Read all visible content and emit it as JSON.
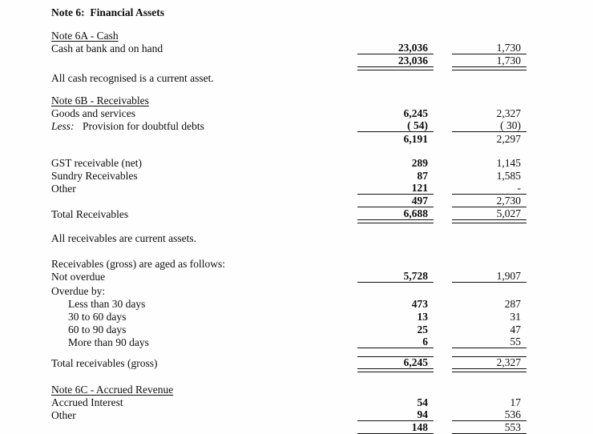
{
  "document": {
    "title": "Note 6:  Financial Assets",
    "rows": [
      {
        "kind": "spacer",
        "h": 12
      },
      {
        "kind": "header",
        "label": "Note 6A - Cash"
      },
      {
        "kind": "data",
        "label": "Cash at bank and on hand",
        "v1": "23,036",
        "v2": "1,730",
        "rule": "u"
      },
      {
        "kind": "data",
        "label": "",
        "v1": "23,036",
        "v2": "1,730",
        "rule": "uu"
      },
      {
        "kind": "spacer",
        "h": 5
      },
      {
        "kind": "text",
        "label": "All cash recognised is a current asset."
      },
      {
        "kind": "spacer",
        "h": 12
      },
      {
        "kind": "header",
        "label": "Note 6B - Receivables"
      },
      {
        "kind": "data",
        "label": "Goods and services",
        "v1": "6,245",
        "v2": "2,327"
      },
      {
        "kind": "data",
        "prefix": "Less:",
        "label": "Provision for doubtful debts",
        "v1": "( 54)",
        "v2": "( 30)",
        "rule": "u"
      },
      {
        "kind": "data",
        "label": "",
        "v1": "6,191",
        "v2": "2,297"
      },
      {
        "kind": "spacer",
        "h": 14
      },
      {
        "kind": "data",
        "label": "GST receivable (net)",
        "v1": "289",
        "v2": "1,145"
      },
      {
        "kind": "data",
        "label": "Sundry Receivables",
        "v1": "87",
        "v2": "1,585"
      },
      {
        "kind": "data",
        "label": "Other",
        "v1": "121",
        "v2": "-",
        "rule": "u"
      },
      {
        "kind": "data",
        "label": "",
        "v1": "497",
        "v2": "2,730",
        "rule": "u"
      },
      {
        "kind": "data",
        "label": "Total Receivables",
        "v1": "6,688",
        "v2": "5,027",
        "rule": "uu"
      },
      {
        "kind": "spacer",
        "h": 14
      },
      {
        "kind": "text",
        "label": "All receivables are current assets."
      },
      {
        "kind": "spacer",
        "h": 16
      },
      {
        "kind": "text",
        "label": "Receivables (gross) are aged as follows:"
      },
      {
        "kind": "data",
        "label": "Not overdue",
        "v1": "5,728",
        "v2": "1,907",
        "rule": "u"
      },
      {
        "kind": "spacer",
        "h": 2
      },
      {
        "kind": "text",
        "label": "Overdue by:"
      },
      {
        "kind": "data",
        "label": "Less than 30 days",
        "indent": 1,
        "v1": "473",
        "v2": "287"
      },
      {
        "kind": "data",
        "label": "30 to 60 days",
        "indent": 1,
        "v1": "13",
        "v2": "31"
      },
      {
        "kind": "data",
        "label": "60 to 90 days",
        "indent": 1,
        "v1": "25",
        "v2": "47"
      },
      {
        "kind": "data",
        "label": "More than 90 days",
        "indent": 1,
        "v1": "6",
        "v2": "55",
        "rule": "u"
      },
      {
        "kind": "spacer",
        "h": 10
      },
      {
        "kind": "data",
        "label": "Total receivables (gross)",
        "v1": "6,245",
        "v2": "2,327",
        "rule": "t-uu"
      },
      {
        "kind": "spacer",
        "h": 17
      },
      {
        "kind": "header",
        "label": "Note 6C - Accrued Revenue"
      },
      {
        "kind": "data",
        "label": "Accrued Interest",
        "v1": "54",
        "v2": "17"
      },
      {
        "kind": "data",
        "label": "Other",
        "v1": "94",
        "v2": "536",
        "rule": "u"
      },
      {
        "kind": "data",
        "label": "",
        "v1": "148",
        "v2": "553",
        "rule": "uu"
      }
    ]
  }
}
